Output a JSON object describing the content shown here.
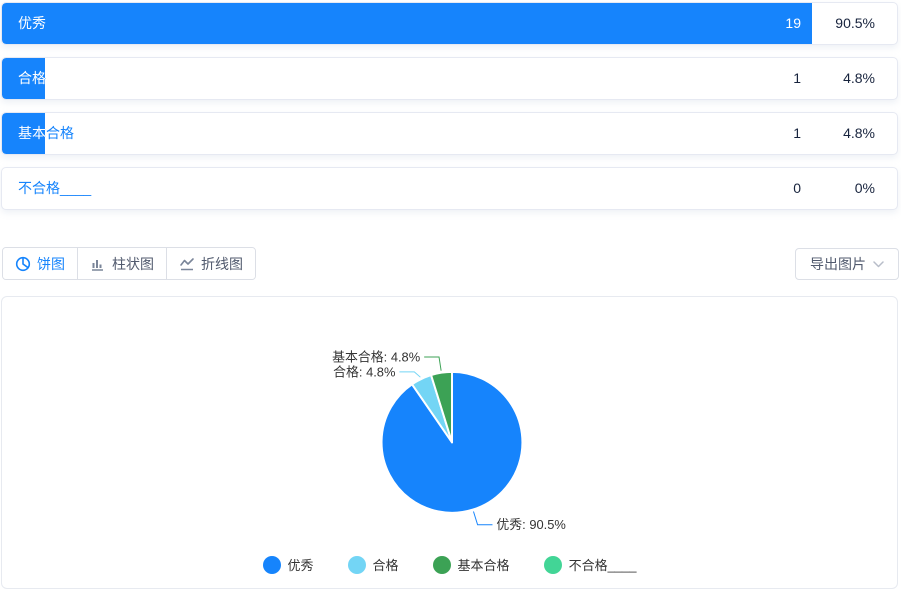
{
  "rows": [
    {
      "label": "优秀",
      "count": "19",
      "percent": "90.5%"
    },
    {
      "label": "合格",
      "count": "1",
      "percent": "4.8%"
    },
    {
      "label": "基本合格",
      "count": "1",
      "percent": "4.8%"
    },
    {
      "label": "不合格____",
      "count": "0",
      "percent": "0%"
    }
  ],
  "toolbar": {
    "tabs": [
      {
        "label": "饼图"
      },
      {
        "label": "柱状图"
      },
      {
        "label": "折线图"
      }
    ],
    "active_tab": "饼图",
    "export_label": "导出图片"
  },
  "chart_data": {
    "type": "pie",
    "labels": [
      "优秀",
      "合格",
      "基本合格",
      "不合格____"
    ],
    "values": [
      90.5,
      4.8,
      4.8,
      0
    ],
    "counts": [
      19,
      1,
      1,
      0
    ],
    "colors": [
      "#1684fc",
      "#73d5f5",
      "#3ca255",
      "#42d596"
    ],
    "visible_slice_labels": [
      "优秀: 90.5%",
      "合格: 4.8%",
      "基本合格: 4.8%"
    ],
    "start_angle": "top",
    "direction": "clockwise",
    "legend_position": "bottom"
  },
  "colors": {
    "accent_blue": "#1684fc",
    "row_text_dark": "#17233d",
    "tab_inactive": "#515a6e"
  }
}
